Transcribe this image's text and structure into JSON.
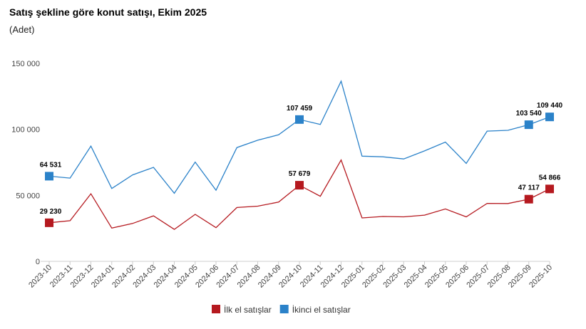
{
  "title": "Satış şekline göre konut satışı, Ekim 2025",
  "subtitle": "(Adet)",
  "chart_data": {
    "type": "line",
    "title": "Satış şekline göre konut satışı, Ekim 2025",
    "subtitle": "(Adet)",
    "xlabel": "",
    "ylabel": "",
    "ylim": [
      0,
      150000
    ],
    "y_ticks": [
      0,
      50000,
      100000,
      150000
    ],
    "y_tick_labels": [
      "0",
      "50 000",
      "100 000",
      "150 000"
    ],
    "grid": false,
    "legend": "bottom-center",
    "categories": [
      "2023-10",
      "2023-11",
      "2023-12",
      "2024-01",
      "2024-02",
      "2024-03",
      "2024-04",
      "2024-05",
      "2024-06",
      "2024-07",
      "2024-08",
      "2024-09",
      "2024-10",
      "2024-11",
      "2024-12",
      "2025-01",
      "2025-02",
      "2025-03",
      "2025-04",
      "2025-05",
      "2025-06",
      "2025-07",
      "2025-08",
      "2025-09",
      "2025-10"
    ],
    "series": [
      {
        "name": "İlk el satışlar",
        "color": "#b5191f",
        "values": [
          29230,
          30800,
          51200,
          25200,
          28700,
          34500,
          24200,
          35600,
          25500,
          40800,
          41800,
          44900,
          57679,
          49300,
          76800,
          32900,
          34000,
          33700,
          35000,
          39700,
          33700,
          43900,
          43800,
          47117,
          54866
        ],
        "labeled": [
          {
            "index": 0,
            "text": "29 230"
          },
          {
            "index": 12,
            "text": "57 679"
          },
          {
            "index": 23,
            "text": "47 117"
          },
          {
            "index": 24,
            "text": "54 866"
          }
        ]
      },
      {
        "name": "İkinci el satışlar",
        "color": "#2b82c9",
        "values": [
          64531,
          63100,
          87300,
          55200,
          65500,
          71200,
          51600,
          75200,
          53900,
          86200,
          91800,
          95900,
          107459,
          103700,
          136500,
          79700,
          79200,
          77600,
          83700,
          90400,
          74200,
          98700,
          99300,
          103540,
          109440
        ],
        "labeled": [
          {
            "index": 0,
            "text": "64 531"
          },
          {
            "index": 12,
            "text": "107 459"
          },
          {
            "index": 23,
            "text": "103 540"
          },
          {
            "index": 24,
            "text": "109 440"
          }
        ]
      }
    ]
  }
}
